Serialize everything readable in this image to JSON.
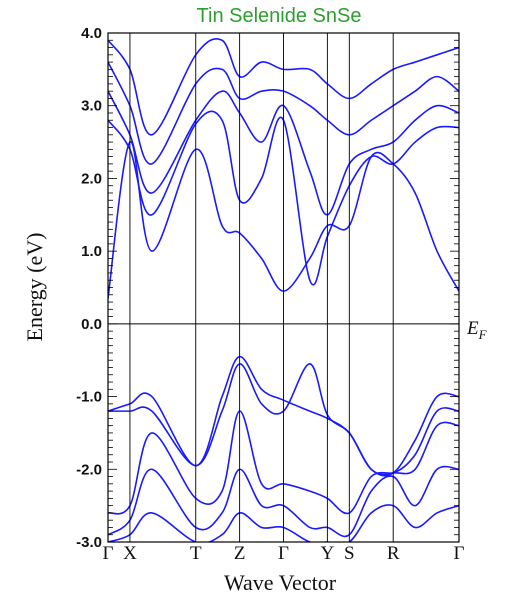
{
  "chart_data": {
    "type": "line",
    "title": "Tin Selenide SnSe",
    "xlabel": "Wave Vector",
    "ylabel": "Energy (eV)",
    "ylim": [
      -3.0,
      4.0
    ],
    "yticks": [
      "4.0",
      "3.0",
      "2.0",
      "1.0",
      "0.0",
      "-1.0",
      "-2.0",
      "-3.0"
    ],
    "fermi_label": "E",
    "fermi_subscript": "F",
    "kpoints": [
      {
        "label": "Γ",
        "x": 0.0
      },
      {
        "label": "X",
        "x": 0.5
      },
      {
        "label": "T",
        "x": 2.0
      },
      {
        "label": "Z",
        "x": 3.0
      },
      {
        "label": "Γ",
        "x": 4.0
      },
      {
        "label": "Y",
        "x": 5.0
      },
      {
        "label": "S",
        "x": 5.5
      },
      {
        "label": "R",
        "x": 6.5
      },
      {
        "label": "Γ",
        "x": 8.0
      }
    ],
    "xlim": [
      0.0,
      8.0
    ],
    "grid": false,
    "legend": "none",
    "line_color": "#1a1aff",
    "series": [
      {
        "x": [
          0.0,
          0.5,
          1.0,
          2.0,
          2.6,
          3.0,
          3.5,
          4.0,
          4.6,
          5.0,
          5.5,
          6.0,
          6.5,
          7.0,
          7.5,
          8.0
        ],
        "y": [
          0.35,
          2.5,
          1.0,
          2.4,
          1.35,
          1.25,
          0.9,
          0.45,
          0.9,
          1.35,
          1.35,
          2.3,
          2.2,
          1.8,
          1.0,
          0.45
        ]
      },
      {
        "x": [
          0.0,
          0.5,
          1.0,
          2.0,
          2.6,
          3.0,
          3.5,
          4.0,
          4.6,
          5.0,
          5.5,
          6.0,
          6.5,
          7.0,
          7.5,
          8.0
        ],
        "y": [
          2.8,
          2.4,
          1.5,
          2.75,
          2.8,
          1.7,
          2.0,
          2.8,
          0.6,
          1.2,
          1.9,
          2.3,
          2.2,
          2.5,
          2.7,
          2.7
        ]
      },
      {
        "x": [
          0.0,
          0.5,
          1.0,
          2.0,
          2.6,
          3.0,
          3.5,
          4.0,
          4.6,
          5.0,
          5.5,
          6.0,
          6.5,
          7.0,
          7.5,
          8.0
        ],
        "y": [
          3.2,
          2.6,
          1.8,
          2.8,
          3.2,
          2.9,
          2.5,
          3.0,
          2.1,
          1.5,
          2.2,
          2.4,
          2.5,
          2.8,
          3.0,
          2.9
        ]
      },
      {
        "x": [
          0.0,
          0.5,
          1.0,
          2.0,
          2.6,
          3.0,
          3.5,
          4.0,
          4.6,
          5.0,
          5.5,
          6.0,
          6.5,
          7.0,
          7.5,
          8.0
        ],
        "y": [
          3.6,
          3.0,
          2.2,
          3.3,
          3.5,
          3.1,
          3.2,
          3.2,
          3.0,
          2.8,
          2.6,
          2.8,
          3.0,
          3.2,
          3.4,
          3.2
        ]
      },
      {
        "x": [
          0.0,
          0.5,
          1.0,
          2.0,
          2.6,
          3.0,
          3.5,
          4.0,
          4.6,
          5.0,
          5.5,
          6.0,
          6.5,
          7.0,
          7.5,
          8.0
        ],
        "y": [
          3.9,
          3.5,
          2.6,
          3.7,
          3.9,
          3.4,
          3.6,
          3.5,
          3.5,
          3.3,
          3.1,
          3.3,
          3.5,
          3.6,
          3.7,
          3.8
        ]
      },
      {
        "x": [
          0.0,
          0.5,
          1.0,
          2.0,
          2.6,
          3.0,
          3.5,
          4.0,
          4.6,
          5.0,
          5.5,
          6.0,
          6.5,
          7.0,
          7.5,
          8.0
        ],
        "y": [
          -1.2,
          -1.1,
          -1.0,
          -1.95,
          -1.0,
          -0.45,
          -0.9,
          -1.05,
          -1.2,
          -1.3,
          -1.5,
          -2.0,
          -2.05,
          -1.6,
          -1.0,
          -1.0
        ]
      },
      {
        "x": [
          0.0,
          0.5,
          1.0,
          2.0,
          2.6,
          3.0,
          3.5,
          4.0,
          4.6,
          5.0,
          5.5,
          6.0,
          6.5,
          7.0,
          7.5,
          8.0
        ],
        "y": [
          -1.2,
          -1.2,
          -1.2,
          -1.95,
          -1.2,
          -0.55,
          -1.1,
          -1.2,
          -0.55,
          -1.25,
          -1.5,
          -2.0,
          -2.05,
          -1.8,
          -1.2,
          -1.2
        ]
      },
      {
        "x": [
          0.0,
          0.5,
          1.0,
          2.0,
          2.6,
          3.0,
          3.5,
          4.0,
          4.6,
          5.0,
          5.5,
          6.0,
          6.5,
          7.0,
          7.5,
          8.0
        ],
        "y": [
          -2.6,
          -2.5,
          -1.5,
          -2.4,
          -2.3,
          -1.2,
          -2.2,
          -2.2,
          -2.3,
          -2.4,
          -2.6,
          -2.1,
          -2.05,
          -2.0,
          -1.4,
          -1.4
        ]
      },
      {
        "x": [
          0.0,
          0.5,
          1.0,
          2.0,
          2.6,
          3.0,
          3.5,
          4.0,
          4.6,
          5.0,
          5.5,
          6.0,
          6.5,
          7.0,
          7.5,
          8.0
        ],
        "y": [
          -2.9,
          -2.7,
          -2.0,
          -2.8,
          -2.6,
          -2.0,
          -2.5,
          -2.5,
          -2.8,
          -2.8,
          -2.9,
          -2.3,
          -2.1,
          -2.5,
          -2.0,
          -2.0
        ]
      },
      {
        "x": [
          0.0,
          0.5,
          1.0,
          2.0,
          2.6,
          3.0,
          3.5,
          4.0,
          4.6,
          5.0,
          5.5,
          6.0,
          6.5,
          7.0,
          7.5,
          8.0
        ],
        "y": [
          -3.0,
          -2.9,
          -2.6,
          -3.0,
          -2.9,
          -2.6,
          -2.8,
          -2.8,
          -3.0,
          -3.0,
          -3.0,
          -2.6,
          -2.5,
          -2.8,
          -2.6,
          -2.5
        ]
      }
    ]
  }
}
